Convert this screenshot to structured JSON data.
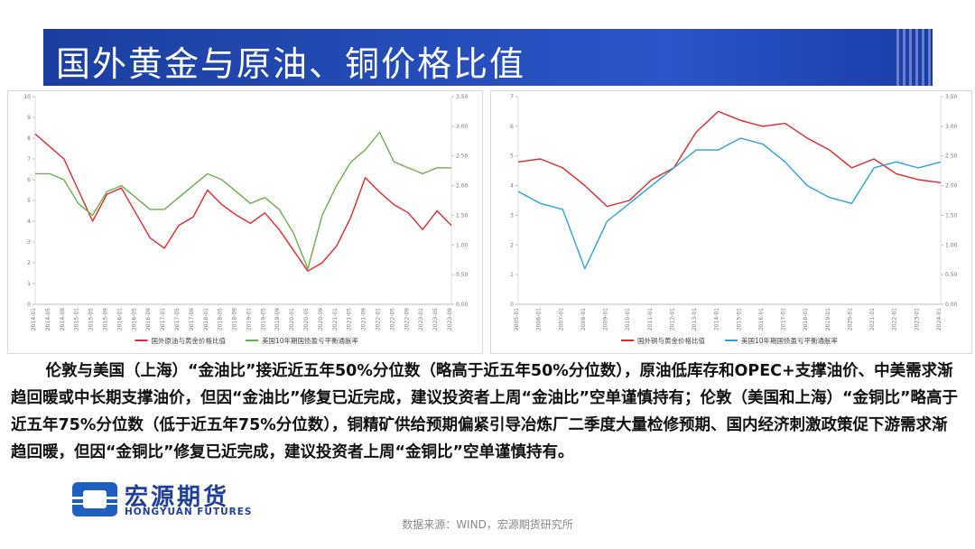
{
  "header": {
    "title": "国外黄金与原油、铜价格比值"
  },
  "chart_data": [
    {
      "type": "line",
      "categories": [
        "2014-01",
        "2014-05",
        "2014-09",
        "2015-01",
        "2015-05",
        "2015-09",
        "2016-01",
        "2016-05",
        "2016-09",
        "2017-01",
        "2017-05",
        "2017-09",
        "2018-01",
        "2018-05",
        "2018-09",
        "2019-01",
        "2019-05",
        "2019-09",
        "2020-01",
        "2020-05",
        "2020-09",
        "2021-01",
        "2021-05",
        "2021-09",
        "2022-01",
        "2022-05",
        "2022-09",
        "2023-01",
        "2023-05",
        "2023-09"
      ],
      "series": [
        {
          "name": "国外原油与黄金价格比值",
          "color": "#e8262b",
          "values": [
            8.2,
            7.6,
            7.0,
            5.5,
            4.0,
            5.3,
            5.6,
            4.4,
            3.2,
            2.7,
            3.8,
            4.2,
            5.5,
            4.8,
            4.3,
            3.9,
            4.4,
            3.6,
            2.6,
            1.6,
            2.0,
            2.8,
            4.2,
            6.1,
            5.4,
            4.8,
            4.4,
            3.6,
            4.5,
            3.8
          ]
        },
        {
          "name": "美国10年期国债盈亏平衡通胀率",
          "color": "#6ab04c",
          "axis": "y2",
          "values": [
            2.2,
            2.2,
            2.1,
            1.7,
            1.5,
            1.9,
            2.0,
            1.8,
            1.6,
            1.6,
            1.8,
            2.0,
            2.2,
            2.1,
            1.9,
            1.7,
            1.8,
            1.6,
            1.2,
            0.6,
            1.5,
            2.0,
            2.4,
            2.6,
            2.9,
            2.4,
            2.3,
            2.2,
            2.3,
            2.3
          ]
        }
      ],
      "ylim": [
        0,
        10
      ],
      "yticks": [
        0,
        1,
        2,
        3,
        4,
        5,
        6,
        7,
        8,
        9,
        10
      ],
      "y2lim": [
        0,
        3.5
      ],
      "y2ticks": [
        {
          "value": 0,
          "label": "0.00"
        },
        {
          "value": 0.5,
          "label": "0.50"
        },
        {
          "value": 1,
          "label": "1.00"
        },
        {
          "value": 1.5,
          "label": "1.50"
        },
        {
          "value": 2,
          "label": "2.00"
        },
        {
          "value": 2.5,
          "label": "2.50"
        },
        {
          "value": 3,
          "label": "3.00"
        },
        {
          "value": 3.5,
          "label": "3.50"
        }
      ],
      "legend": "bottom"
    },
    {
      "type": "line",
      "categories": [
        "2005-01",
        "2006-01",
        "2007-01",
        "2008-01",
        "2009-01",
        "2010-01",
        "2011-01",
        "2012-01",
        "2013-01",
        "2014-01",
        "2015-01",
        "2016-01",
        "2017-01",
        "2018-01",
        "2019-01",
        "2020-01",
        "2021-01",
        "2022-01",
        "2023-01",
        "2024-01"
      ],
      "series": [
        {
          "name": "国外铜与黄金价格比值",
          "color": "#e8262b",
          "values": [
            4.8,
            4.9,
            4.6,
            4.0,
            3.3,
            3.5,
            4.2,
            4.6,
            5.8,
            6.5,
            6.2,
            6.0,
            6.1,
            5.6,
            5.2,
            4.6,
            4.9,
            4.4,
            4.2,
            4.1
          ]
        },
        {
          "name": "美国10年期国债盈亏平衡通胀率",
          "color": "#29a3e0",
          "axis": "y2",
          "values": [
            1.9,
            1.7,
            1.6,
            0.6,
            1.4,
            1.7,
            2.0,
            2.3,
            2.6,
            2.6,
            2.8,
            2.7,
            2.4,
            2.0,
            1.8,
            1.7,
            2.3,
            2.4,
            2.3,
            2.4
          ]
        }
      ],
      "ylim": [
        0,
        7
      ],
      "yticks": [
        0,
        1,
        2,
        3,
        4,
        5,
        6,
        7
      ],
      "y2lim": [
        0,
        3.5
      ],
      "y2ticks": [
        {
          "value": 0,
          "label": "0.00"
        },
        {
          "value": 0.5,
          "label": "0.50"
        },
        {
          "value": 1,
          "label": "1.00"
        },
        {
          "value": 1.5,
          "label": "1.50"
        },
        {
          "value": 2,
          "label": "2.00"
        },
        {
          "value": 2.5,
          "label": "2.50"
        },
        {
          "value": 3,
          "label": "3.00"
        },
        {
          "value": 3.5,
          "label": "3.50"
        }
      ],
      "legend": "bottom"
    }
  ],
  "body": {
    "text": "伦敦与美国（上海）“金油比”接近近五年50%分位数（略高于近五年50%分位数），原油低库存和OPEC+支撑油价、中美需求渐趋回暖或中长期支撑油价，但因“金油比”修复已近完成，建议投资者上周“金油比”空单谨慎持有；伦敦（美国和上海）“金铜比”略高于近五年75%分位数（低于近五年75%分位数），铜精矿供给预期偏紧引导冶炼厂二季度大量检修预期、国内经济刺激政策促下游需求渐趋回暖，但因“金铜比”修复已近完成，建议投资者上周“金铜比”空单谨慎持有。"
  },
  "logo": {
    "name": "宏源期货",
    "name_en": "HONGYUAN FUTURES"
  },
  "footer": {
    "source": "数据来源：WIND，宏源期货研究所"
  }
}
